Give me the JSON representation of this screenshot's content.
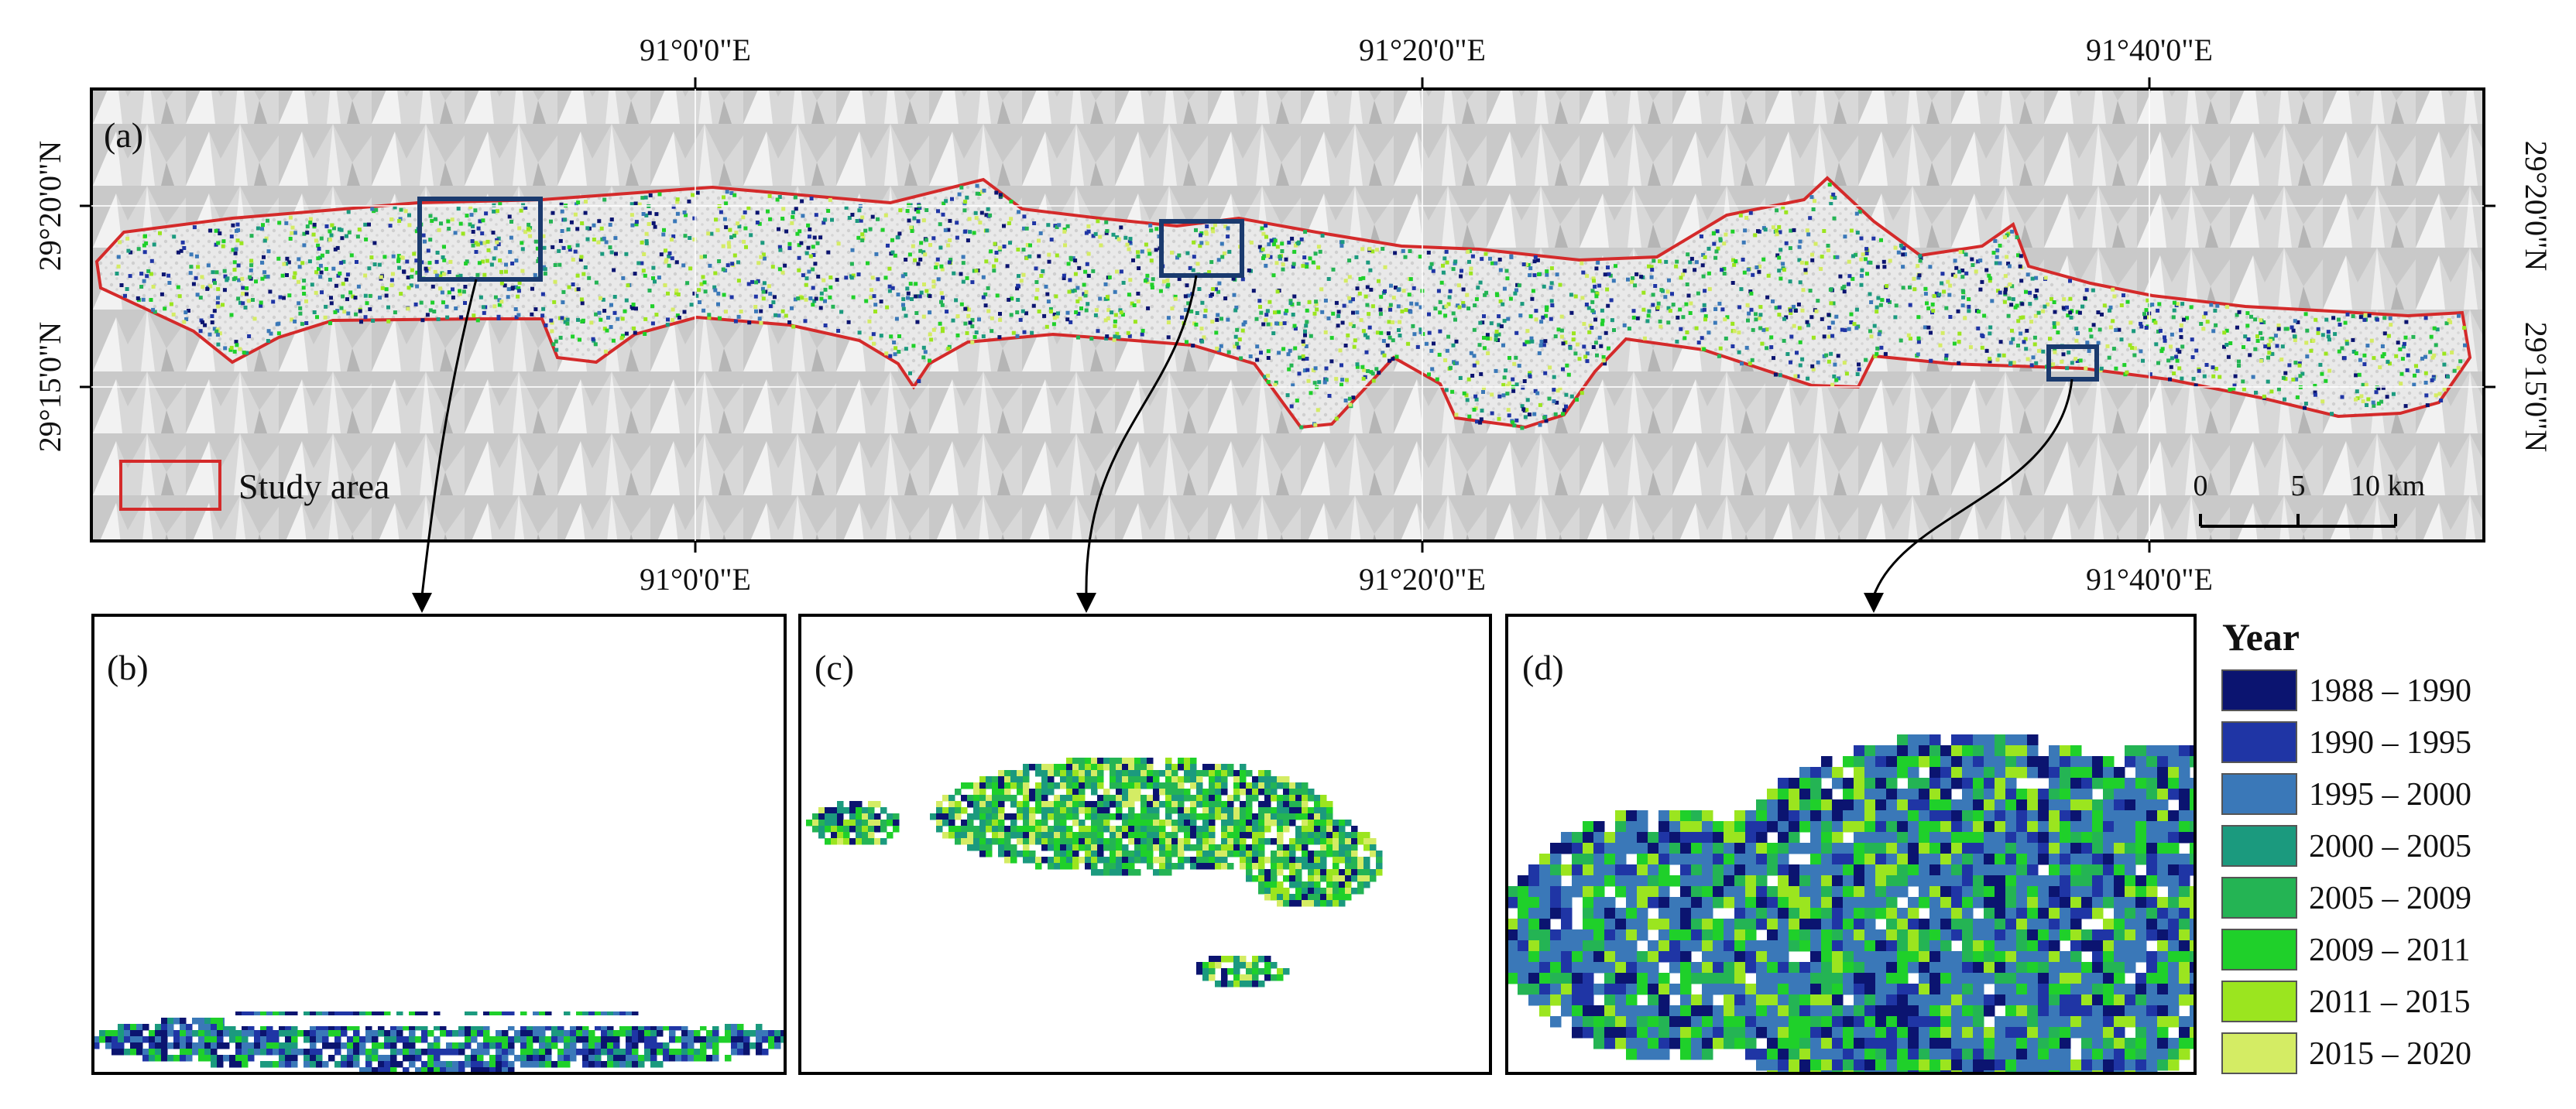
{
  "panels": {
    "a": {
      "label": "(a)"
    },
    "b": {
      "label": "(b)"
    },
    "c": {
      "label": "(c)"
    },
    "d": {
      "label": "(d)"
    }
  },
  "coordinates": {
    "top_longitudes": [
      "91°0'0\"E",
      "91°20'0\"E",
      "91°40'0\"E"
    ],
    "bottom_longitudes": [
      "91°0'0\"E",
      "91°20'0\"E",
      "91°40'0\"E"
    ],
    "left_latitudes": [
      "29°20'0\"N",
      "29°15'0\"N"
    ],
    "right_latitudes": [
      "29°20'0\"N",
      "29°15'0\"N"
    ]
  },
  "study_area_legend": {
    "label": "Study area",
    "color": "#d42a2a"
  },
  "scale_bar": {
    "ticks": [
      "0",
      "5",
      "10 km"
    ]
  },
  "year_legend": {
    "title": "Year",
    "separator": "–",
    "items": [
      {
        "from": "1988",
        "to": "1990",
        "color": "#0b1470"
      },
      {
        "from": "1990",
        "to": "1995",
        "color": "#1f35a5"
      },
      {
        "from": "1995",
        "to": "2000",
        "color": "#3a78b8"
      },
      {
        "from": "2000",
        "to": "2005",
        "color": "#1b9a7e"
      },
      {
        "from": "2005",
        "to": "2009",
        "color": "#24b454"
      },
      {
        "from": "2009",
        "to": "2011",
        "color": "#1fd02a"
      },
      {
        "from": "2011",
        "to": "2015",
        "color": "#9be51f"
      },
      {
        "from": "2015",
        "to": "2020",
        "color": "#d4ec64"
      }
    ]
  }
}
